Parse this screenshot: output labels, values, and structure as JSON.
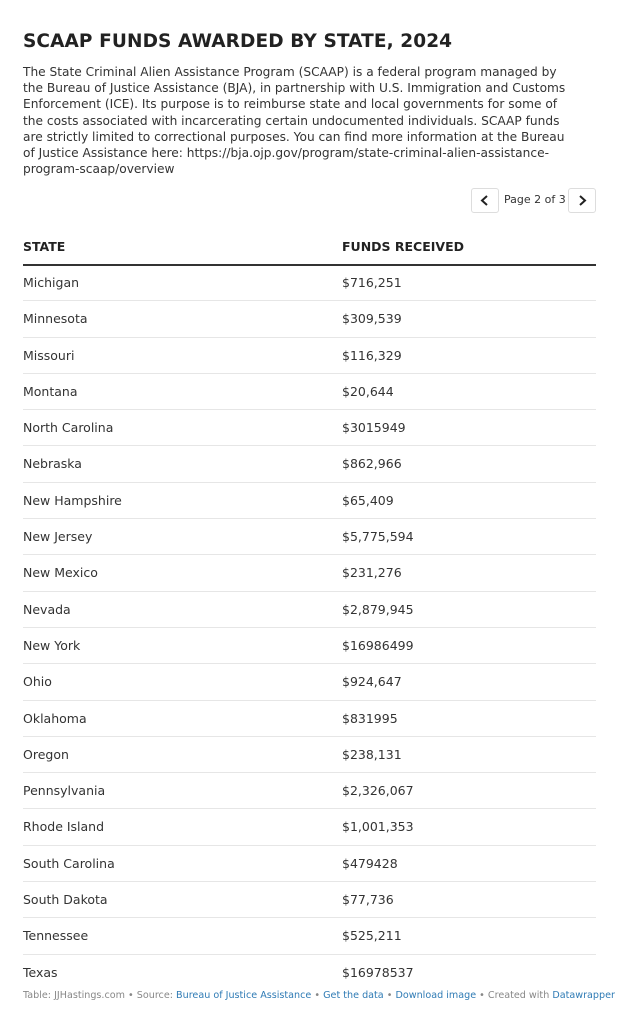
{
  "header": {
    "title": "SCAAP FUNDS AWARDED BY STATE, 2024",
    "description": "The State Criminal Alien Assistance Program (SCAAP) is a federal program managed by the Bureau of Justice Assistance (BJA), in partnership with U.S. Immigration and Customs Enforcement (ICE). Its purpose is to reimburse state and local governments for some of the costs associated with incarcerating certain undocumented individuals. SCAAP funds are strictly limited to correctional purposes. You can find more information at the Bureau of Justice Assistance here: https://bja.ojp.gov/program/state-criminal-alien-assistance-program-scaap/overview"
  },
  "pagination": {
    "label": "Page 2 of 3"
  },
  "table": {
    "columns": [
      "STATE",
      "FUNDS RECEIVED"
    ],
    "rows": [
      [
        "Michigan",
        "$716,251"
      ],
      [
        "Minnesota",
        "$309,539"
      ],
      [
        "Missouri",
        "$116,329"
      ],
      [
        "Montana",
        "$20,644"
      ],
      [
        "North Carolina",
        "$3015949"
      ],
      [
        "Nebraska",
        "$862,966"
      ],
      [
        "New Hampshire",
        "$65,409"
      ],
      [
        "New Jersey",
        "$5,775,594"
      ],
      [
        "New Mexico",
        "$231,276"
      ],
      [
        "Nevada",
        "$2,879,945"
      ],
      [
        "New York",
        "$16986499"
      ],
      [
        "Ohio",
        "$924,647"
      ],
      [
        "Oklahoma",
        "$831995"
      ],
      [
        "Oregon",
        "$238,131"
      ],
      [
        "Pennsylvania",
        "$2,326,067"
      ],
      [
        "Rhode Island",
        "$1,001,353"
      ],
      [
        "South Carolina",
        "$479428"
      ],
      [
        "South Dakota",
        "$77,736"
      ],
      [
        "Tennessee",
        "$525,211"
      ],
      [
        "Texas",
        "$16978537"
      ]
    ]
  },
  "footer": {
    "byline": "Table: JJHastings.com",
    "separator": "•",
    "source_label": "Source:",
    "source_link": "Bureau of Justice Assistance",
    "get_data": "Get the data",
    "download": "Download image",
    "created_label": "Created with",
    "created_link": "Datawrapper"
  }
}
